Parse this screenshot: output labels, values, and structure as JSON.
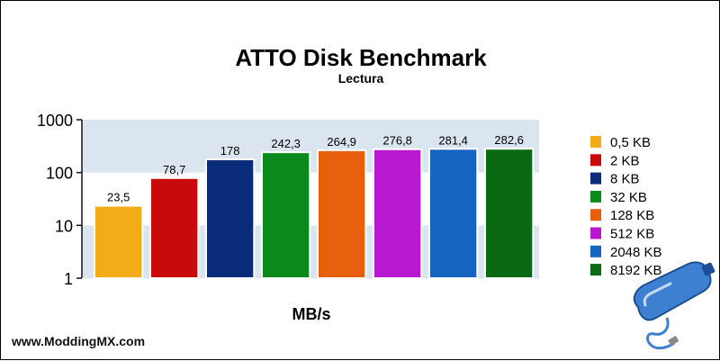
{
  "watermark": "www.ModdingMX.com",
  "chart_data": {
    "type": "bar",
    "title": "ATTO Disk Benchmark",
    "subtitle": "Lectura",
    "xlabel": "MB/s",
    "ylabel": "",
    "yscale": "log",
    "ylim": [
      1,
      1000
    ],
    "yticks": [
      1,
      10,
      100,
      1000
    ],
    "ytick_labels": [
      "1",
      "10",
      "100",
      "1000"
    ],
    "grid": "alternating horizontal bands",
    "legend_position": "right",
    "series": [
      {
        "name": "0,5 KB",
        "value": 23.5,
        "label": "23,5",
        "color": "#f2ac18"
      },
      {
        "name": "2 KB",
        "value": 78.7,
        "label": "78,7",
        "color": "#c80a0a"
      },
      {
        "name": "8 KB",
        "value": 178,
        "label": "178",
        "color": "#0a2a7a"
      },
      {
        "name": "32 KB",
        "value": 242.3,
        "label": "242,3",
        "color": "#0a8a1a"
      },
      {
        "name": "128 KB",
        "value": 264.9,
        "label": "264,9",
        "color": "#e8600e"
      },
      {
        "name": "512 KB",
        "value": 276.8,
        "label": "276,8",
        "color": "#b818d0"
      },
      {
        "name": "2048 KB",
        "value": 281.4,
        "label": "281,4",
        "color": "#1464c0"
      },
      {
        "name": "8192 KB",
        "value": 282.6,
        "label": "282,6",
        "color": "#0a6a14"
      }
    ]
  },
  "colors": {
    "band": "#dbe5f0",
    "axis": "#111111",
    "bar_outline": "#ffffff",
    "logo_body": "#3d7fd0",
    "logo_cap": "#1e4f95"
  },
  "logo_icon": "water-bottle-icon"
}
